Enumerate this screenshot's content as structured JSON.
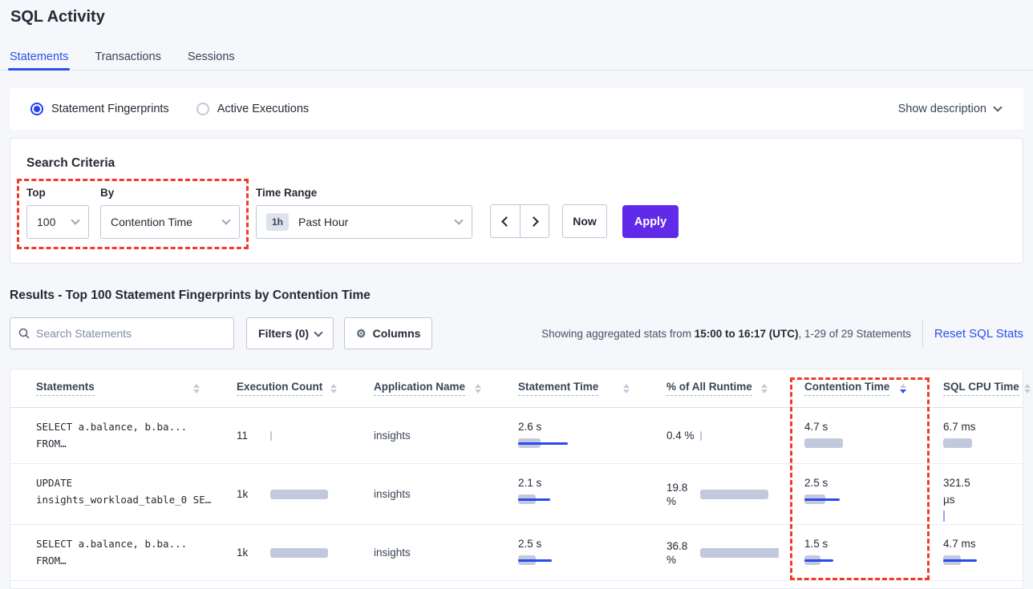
{
  "colors": {
    "accent_blue": "#2b50ec",
    "apply_purple": "#6129e8",
    "bar_gray": "#c3c9dc",
    "bar_blue": "#2b49ef",
    "annotation_red": "#f03b2b"
  },
  "header": {
    "title": "SQL Activity",
    "tabs": [
      {
        "label": "Statements",
        "active": true
      },
      {
        "label": "Transactions",
        "active": false
      },
      {
        "label": "Sessions",
        "active": false
      }
    ]
  },
  "view_bar": {
    "radios": [
      {
        "label": "Statement Fingerprints",
        "selected": true
      },
      {
        "label": "Active Executions",
        "selected": false
      }
    ],
    "show_description": "Show description"
  },
  "criteria": {
    "heading": "Search Criteria",
    "top_label": "Top",
    "top_value": "100",
    "by_label": "By",
    "by_value": "Contention Time",
    "time_label": "Time Range",
    "time_badge": "1h",
    "time_value": "Past Hour",
    "now_label": "Now",
    "apply_label": "Apply"
  },
  "results": {
    "heading": "Results - Top 100 Statement Fingerprints by Contention Time",
    "search_placeholder": "Search Statements",
    "filters_label": "Filters (0)",
    "columns_label": "Columns",
    "stats_prefix": "Showing aggregated stats from ",
    "stats_bold": "15:00 to 16:17 (UTC)",
    "stats_suffix": ", 1-29 of 29 Statements",
    "reset_label": "Reset SQL Stats"
  },
  "table": {
    "headers": [
      {
        "label": "Statements",
        "sort": "none"
      },
      {
        "label": "Execution Count",
        "sort": "none"
      },
      {
        "label": "Application Name",
        "sort": "none"
      },
      {
        "label": "Statement Time",
        "sort": "none"
      },
      {
        "label": "% of All Runtime",
        "sort": "none"
      },
      {
        "label": "Contention Time",
        "sort": "desc"
      },
      {
        "label": "SQL CPU Time",
        "sort": "none"
      }
    ],
    "rows": [
      {
        "statement": [
          "SELECT a.balance, b.ba...",
          "FROM…"
        ],
        "execution_count": {
          "lines": [
            "11"
          ],
          "gray": 2,
          "blue": 0
        },
        "application": "insights",
        "statement_time": {
          "lines": [
            "2.6 s"
          ],
          "gray": 28,
          "blue": 62
        },
        "pct_runtime": {
          "lines": [
            "0.4 %"
          ],
          "gray": 2,
          "blue": 0
        },
        "contention_time": {
          "lines": [
            "4.7 s"
          ],
          "gray": 48,
          "blue": 0
        },
        "sql_cpu_time": {
          "lines": [
            "6.7 ms"
          ],
          "gray": 36,
          "blue": 0
        }
      },
      {
        "statement": [
          "UPDATE",
          "insights_workload_table_0 SE…"
        ],
        "execution_count": {
          "lines": [
            "1k"
          ],
          "gray": 72,
          "blue": 0
        },
        "application": "insights",
        "statement_time": {
          "lines": [
            "2.1 s"
          ],
          "gray": 22,
          "blue": 40
        },
        "pct_runtime": {
          "lines": [
            "19.8",
            "%"
          ],
          "gray": 85,
          "blue": 0
        },
        "contention_time": {
          "lines": [
            "2.5 s"
          ],
          "gray": 26,
          "blue": 44
        },
        "sql_cpu_time": {
          "lines": [
            "321.5",
            "µs"
          ],
          "gray": 0,
          "blue": 0,
          "tick": true
        }
      },
      {
        "statement": [
          "SELECT a.balance, b.ba...",
          "FROM…"
        ],
        "execution_count": {
          "lines": [
            "1k"
          ],
          "gray": 72,
          "blue": 0
        },
        "application": "insights",
        "statement_time": {
          "lines": [
            "2.5 s"
          ],
          "gray": 22,
          "blue": 42
        },
        "pct_runtime": {
          "lines": [
            "36.8",
            "%"
          ],
          "gray": 100,
          "blue": 0
        },
        "contention_time": {
          "lines": [
            "1.5 s"
          ],
          "gray": 20,
          "blue": 36
        },
        "sql_cpu_time": {
          "lines": [
            "4.7 ms"
          ],
          "gray": 22,
          "blue": 42
        }
      }
    ]
  }
}
